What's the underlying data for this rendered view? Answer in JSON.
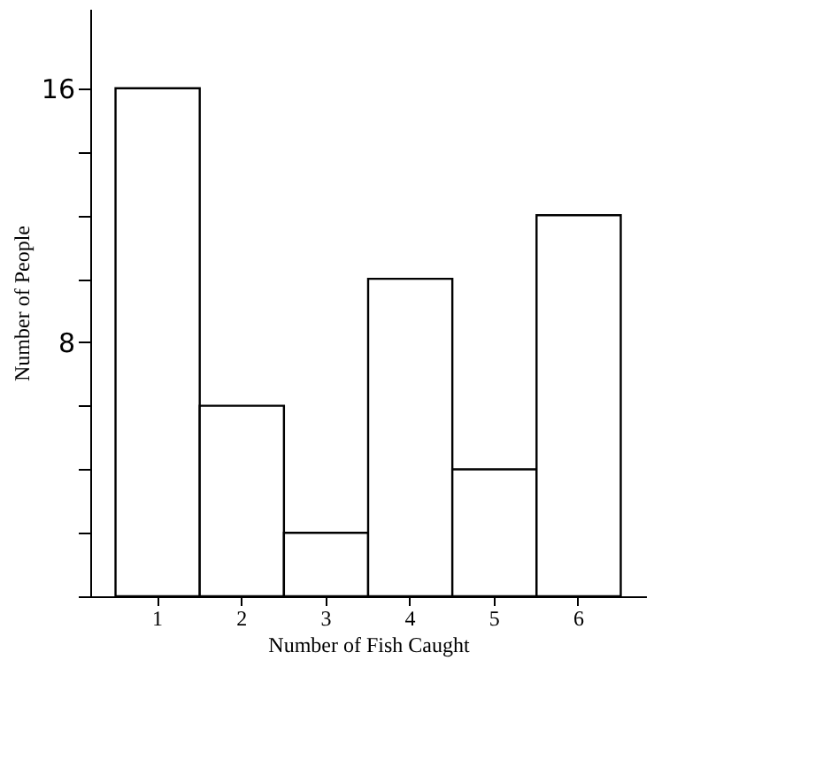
{
  "chart_data": {
    "type": "bar",
    "xlabel": "Number of Fish Caught",
    "ylabel": "Number of People",
    "categories": [
      "1",
      "2",
      "3",
      "4",
      "5",
      "6"
    ],
    "values": [
      16,
      6,
      2,
      10,
      4,
      12
    ],
    "color": "#ffffff",
    "ylim": [
      0,
      18.5
    ],
    "yticks": [
      {
        "value": 0,
        "label": null
      },
      {
        "value": 2,
        "label": null
      },
      {
        "value": 4,
        "label": null
      },
      {
        "value": 6,
        "label": null
      },
      8,
      {
        "value": 10,
        "label": null
      },
      {
        "value": 12,
        "label": null
      },
      {
        "value": 14,
        "label": null
      },
      16
    ],
    "grid": false
  }
}
